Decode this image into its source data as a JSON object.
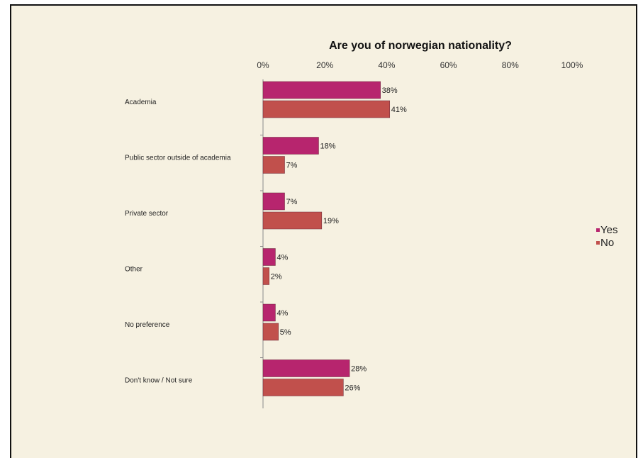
{
  "chart_data": {
    "type": "bar",
    "orientation": "horizontal",
    "title": "Are you of norwegian nationality?",
    "xlabel": "",
    "ylabel": "",
    "xlim": [
      0,
      100
    ],
    "x_ticks": [
      "0%",
      "20%",
      "40%",
      "60%",
      "80%",
      "100%"
    ],
    "x_axis_position": "top",
    "categories": [
      "Academia",
      "Public sector outside of academia",
      "Private sector",
      "Other",
      "No preference",
      "Don't know / Not sure"
    ],
    "series": [
      {
        "name": "Yes",
        "color": "#b7256e",
        "values": [
          38,
          18,
          7,
          4,
          4,
          28
        ],
        "labels": [
          "38%",
          "18%",
          "7%",
          "4%",
          "4%",
          "28%"
        ]
      },
      {
        "name": "No",
        "color": "#c1504c",
        "values": [
          41,
          7,
          19,
          2,
          5,
          26
        ],
        "labels": [
          "41%",
          "7%",
          "19%",
          "2%",
          "5%",
          "26%"
        ]
      }
    ],
    "grid": false,
    "legend_position": "right",
    "background_color": "#f6f1e1"
  }
}
